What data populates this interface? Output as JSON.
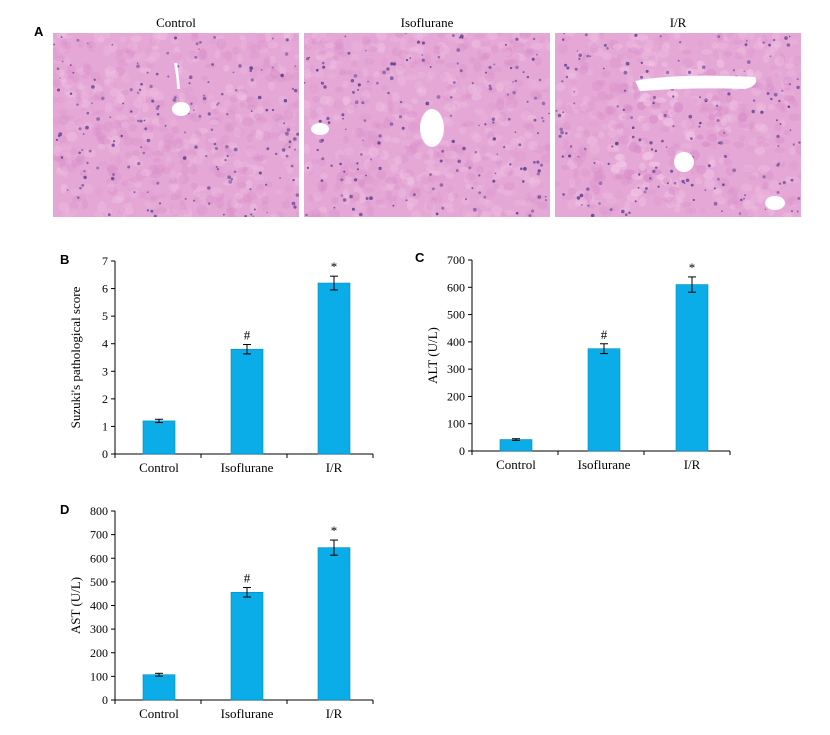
{
  "panels": {
    "a_label": "A",
    "b_label": "B",
    "c_label": "C",
    "d_label": "D"
  },
  "micrographs": [
    {
      "title": "Control"
    },
    {
      "title": "Isoflurane"
    },
    {
      "title": "I/R"
    }
  ],
  "colors": {
    "bar": "#0AADE8",
    "bar_edge": "#0789BA",
    "tissue": "#E5A8D6",
    "nuclei": "#5A3E8F",
    "vessel": "#FFFFFF"
  },
  "chart_data": [
    {
      "type": "bar",
      "title": "",
      "xlabel": "",
      "ylabel": "Suzuki's pathological score",
      "categories": [
        "Control",
        "Isoflurane",
        "I/R"
      ],
      "values": [
        1.2,
        3.8,
        6.2
      ],
      "errors": [
        0.06,
        0.17,
        0.25
      ],
      "annotations": [
        "",
        "#",
        "*"
      ],
      "ylim": [
        0,
        7
      ],
      "yticks": [
        0,
        1,
        2,
        3,
        4,
        5,
        6,
        7
      ],
      "grid": false
    },
    {
      "type": "bar",
      "title": "",
      "xlabel": "",
      "ylabel": "ALT (U/L)",
      "categories": [
        "Control",
        "Isoflurane",
        "I/R"
      ],
      "values": [
        42,
        375,
        610
      ],
      "errors": [
        3,
        18,
        28
      ],
      "annotations": [
        "",
        "#",
        "*"
      ],
      "ylim": [
        0,
        700
      ],
      "yticks": [
        0,
        100,
        200,
        300,
        400,
        500,
        600,
        700
      ],
      "grid": false
    },
    {
      "type": "bar",
      "title": "",
      "xlabel": "",
      "ylabel": "AST (U/L)",
      "categories": [
        "Control",
        "Isoflurane",
        "I/R"
      ],
      "values": [
        107,
        456,
        645
      ],
      "errors": [
        6,
        20,
        32
      ],
      "annotations": [
        "",
        "#",
        "*"
      ],
      "ylim": [
        0,
        800
      ],
      "yticks": [
        0,
        100,
        200,
        300,
        400,
        500,
        600,
        700,
        800
      ],
      "grid": false
    }
  ]
}
